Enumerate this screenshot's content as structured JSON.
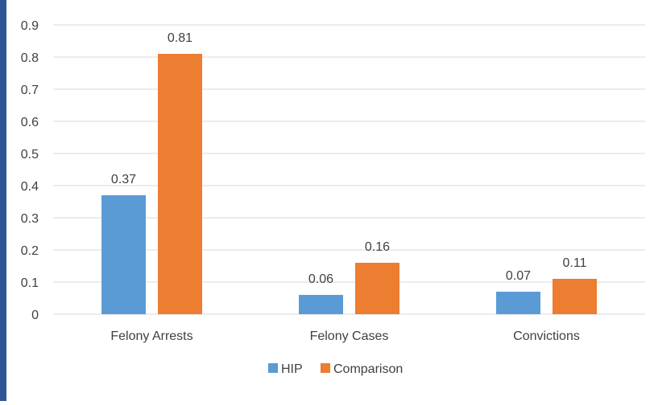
{
  "chart_data": {
    "type": "bar",
    "categories": [
      "Felony Arrests",
      "Felony Cases",
      "Convictions"
    ],
    "series": [
      {
        "name": "HIP",
        "values": [
          0.37,
          0.06,
          0.07
        ],
        "color": "#5b9bd5"
      },
      {
        "name": "Comparison",
        "values": [
          0.81,
          0.16,
          0.11
        ],
        "color": "#ed7d31"
      }
    ],
    "value_labels": [
      [
        "0.37",
        "0.06",
        "0.07"
      ],
      [
        "0.81",
        "0.16",
        "0.11"
      ]
    ],
    "yticks": [
      "0",
      "0.1",
      "0.2",
      "0.3",
      "0.4",
      "0.5",
      "0.6",
      "0.7",
      "0.8",
      "0.9"
    ],
    "ylim": [
      0,
      0.9
    ],
    "grid": true,
    "legend_position": "bottom",
    "title": "",
    "xlabel": "",
    "ylabel": ""
  }
}
